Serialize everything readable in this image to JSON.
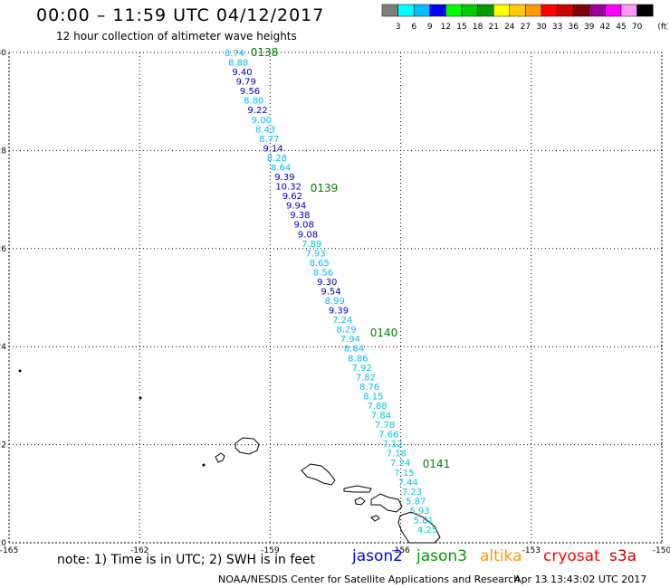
{
  "header": {
    "title": "00:00 – 11:59 UTC 04/12/2017",
    "subtitle": "12 hour collection of altimeter wave heights"
  },
  "legend": {
    "unit": "(ft)",
    "bins": [
      {
        "label": "3",
        "color": "#7f7f7f"
      },
      {
        "label": "6",
        "color": "#00ffff"
      },
      {
        "label": "9",
        "color": "#00bfff"
      },
      {
        "label": "12",
        "color": "#0000ff"
      },
      {
        "label": "15",
        "color": "#00ff00"
      },
      {
        "label": "18",
        "color": "#00cc00"
      },
      {
        "label": "21",
        "color": "#009900"
      },
      {
        "label": "24",
        "color": "#ffff00"
      },
      {
        "label": "27",
        "color": "#ffcc00"
      },
      {
        "label": "30",
        "color": "#ff9900"
      },
      {
        "label": "33",
        "color": "#ff0000"
      },
      {
        "label": "36",
        "color": "#cc0000"
      },
      {
        "label": "39",
        "color": "#800000"
      },
      {
        "label": "42",
        "color": "#990099"
      },
      {
        "label": "45",
        "color": "#ff00ff"
      },
      {
        "label": "70",
        "color": "#ff99ff"
      },
      {
        "label": "",
        "color": "#000000"
      }
    ]
  },
  "map": {
    "lat_range": [
      20,
      30
    ],
    "lon_range": [
      -165,
      -150
    ],
    "lat_ticks": [
      "30",
      "28",
      "26",
      "24",
      "22",
      "20"
    ],
    "lon_ticks": [
      "-165",
      "-162",
      "-159",
      "-156",
      "-153",
      "-150"
    ],
    "passes": [
      "0138",
      "0139",
      "0140",
      "0141"
    ],
    "pass_color": "#008000",
    "swh_colors": {
      "c6": "#00bfff",
      "c9": "#0000c0",
      "c3": "#00c8d8"
    },
    "points": [
      [
        "8.74",
        "c6"
      ],
      [
        "8.88",
        "c6"
      ],
      [
        "9.40",
        "c9"
      ],
      [
        "9.79",
        "c9"
      ],
      [
        "9.56",
        "c9"
      ],
      [
        "8.80",
        "c6"
      ],
      [
        "9.22",
        "c9"
      ],
      [
        "9.00",
        "c6"
      ],
      [
        "8.43",
        "c6"
      ],
      [
        "8.77",
        "c6"
      ],
      [
        "9.14",
        "c9"
      ],
      [
        "8.28",
        "c6"
      ],
      [
        "8.64",
        "c6"
      ],
      [
        "9.39",
        "c9"
      ],
      [
        "10.32",
        "c9"
      ],
      [
        "9.62",
        "c9"
      ],
      [
        "9.94",
        "c9"
      ],
      [
        "9.38",
        "c9"
      ],
      [
        "9.08",
        "c9"
      ],
      [
        "9.08",
        "c9"
      ],
      [
        "7.89",
        "c3"
      ],
      [
        "7.93",
        "c3"
      ],
      [
        "8.65",
        "c6"
      ],
      [
        "8.56",
        "c6"
      ],
      [
        "9.30",
        "c9"
      ],
      [
        "9.54",
        "c9"
      ],
      [
        "8.99",
        "c6"
      ],
      [
        "9.39",
        "c9"
      ],
      [
        "7.24",
        "c3"
      ],
      [
        "8.29",
        "c6"
      ],
      [
        "7.94",
        "c3"
      ],
      [
        "8.84",
        "c6"
      ],
      [
        "8.86",
        "c6"
      ],
      [
        "7.92",
        "c3"
      ],
      [
        "7.82",
        "c3"
      ],
      [
        "8.76",
        "c6"
      ],
      [
        "8.15",
        "c6"
      ],
      [
        "7.88",
        "c3"
      ],
      [
        "7.84",
        "c3"
      ],
      [
        "7.78",
        "c3"
      ],
      [
        "7.66",
        "c3"
      ],
      [
        "7.12",
        "c3"
      ],
      [
        "7.18",
        "c3"
      ],
      [
        "7.24",
        "c3"
      ],
      [
        "7.15",
        "c3"
      ],
      [
        "7.44",
        "c3"
      ],
      [
        "7.23",
        "c3"
      ],
      [
        "5.87",
        "c3"
      ],
      [
        "5.93",
        "c3"
      ],
      [
        "5.81",
        "c3"
      ],
      [
        "4.25",
        "c3"
      ]
    ]
  },
  "footer": {
    "note": "note:  1) Time is in UTC;  2) SWH is in feet",
    "satellites": [
      {
        "name": "jason2",
        "color": "#0000ff"
      },
      {
        "name": "jason3",
        "color": "#009900"
      },
      {
        "name": "altika",
        "color": "#ff9900"
      },
      {
        "name": "cryosat",
        "color": "#ff0000"
      },
      {
        "name": "s3a",
        "color": "#cc0000"
      }
    ],
    "credit": "NOAA/NESDIS Center for Satellite Applications and Research",
    "timestamp": "Apr 13 13:43:02 UTC 2017"
  }
}
